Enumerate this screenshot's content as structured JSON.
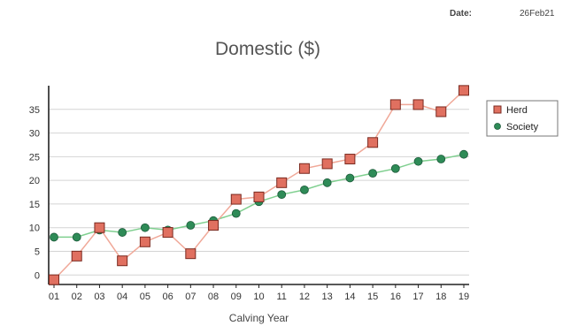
{
  "header": {
    "date_label": "Date:",
    "date_value": "26Feb21"
  },
  "chart_data": {
    "type": "line",
    "title": "Domestic ($)",
    "xlabel": "Calving Year",
    "ylabel": "",
    "categories": [
      "01",
      "02",
      "03",
      "04",
      "05",
      "06",
      "07",
      "08",
      "09",
      "10",
      "11",
      "12",
      "13",
      "14",
      "15",
      "16",
      "17",
      "18",
      "19"
    ],
    "ylim": [
      -2,
      40
    ],
    "yticks": [
      0,
      5,
      10,
      15,
      20,
      25,
      30,
      35
    ],
    "grid": true,
    "legend_position": "right",
    "series": [
      {
        "name": "Herd",
        "marker": "square",
        "color": "#e07060",
        "values": [
          -1,
          4,
          10,
          3,
          7,
          9,
          4.5,
          10.5,
          16,
          16.5,
          19.5,
          22.5,
          23.5,
          24.5,
          28,
          36,
          36,
          34.5,
          39
        ]
      },
      {
        "name": "Society",
        "marker": "circle",
        "color": "#2e8b57",
        "values": [
          8,
          8,
          9.5,
          9,
          10,
          9.5,
          10.5,
          11.5,
          13,
          15.5,
          17,
          18,
          19.5,
          20.5,
          21.5,
          22.5,
          24,
          24.5,
          25.5
        ]
      }
    ]
  }
}
